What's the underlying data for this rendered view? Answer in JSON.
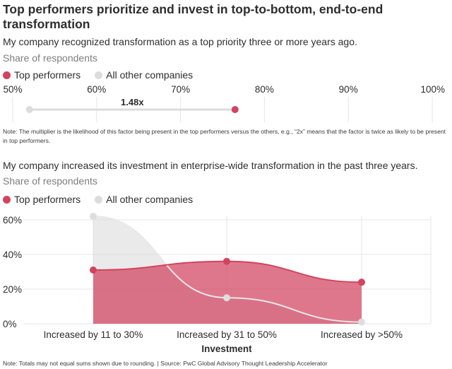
{
  "title": "Top performers prioritize and invest in top-to-bottom, end-to-end transformation",
  "colors": {
    "top": "#d3435f",
    "other": "#dcdcdc",
    "grid": "#e6e6e6"
  },
  "chart_data": [
    {
      "type": "dumbbell",
      "question": "My company recognized transformation as a top priority three or more years ago.",
      "subtitle": "Share of respondents",
      "legend": [
        "Top performers",
        "All other companies"
      ],
      "x_ticks": [
        "50%",
        "60%",
        "70%",
        "80%",
        "90%",
        "100%"
      ],
      "xlim": [
        50,
        100
      ],
      "series": [
        {
          "name": "Top performers",
          "value": 76.5
        },
        {
          "name": "All other companies",
          "value": 52
        }
      ],
      "annotation": "1.48x",
      "note": "Note: The multiplier is the likelihood of this factor being present in the top performers versus the others, e.g., “2x” means that the factor is twice as likely to be present in top performers."
    },
    {
      "type": "area",
      "question": "My company increased its investment in enterprise-wide transformation in the past three years.",
      "subtitle": "Share of respondents",
      "legend": [
        "Top performers",
        "All other companies"
      ],
      "categories": [
        "Increased by 11 to 30%",
        "Increased by 31 to 50%",
        "Increased by >50%"
      ],
      "xlabel": "Investment",
      "y_ticks": [
        "0%",
        "20%",
        "40%",
        "60%"
      ],
      "ylim": [
        0,
        62
      ],
      "series": [
        {
          "name": "Top performers",
          "values": [
            31,
            36,
            24
          ]
        },
        {
          "name": "All other companies",
          "values": [
            62,
            15,
            1
          ]
        }
      ]
    }
  ],
  "footer": "Note: Totals may not equal sums shown due to rounding. | Source: PwC Global Advisory Thought Leadership Accelerator"
}
